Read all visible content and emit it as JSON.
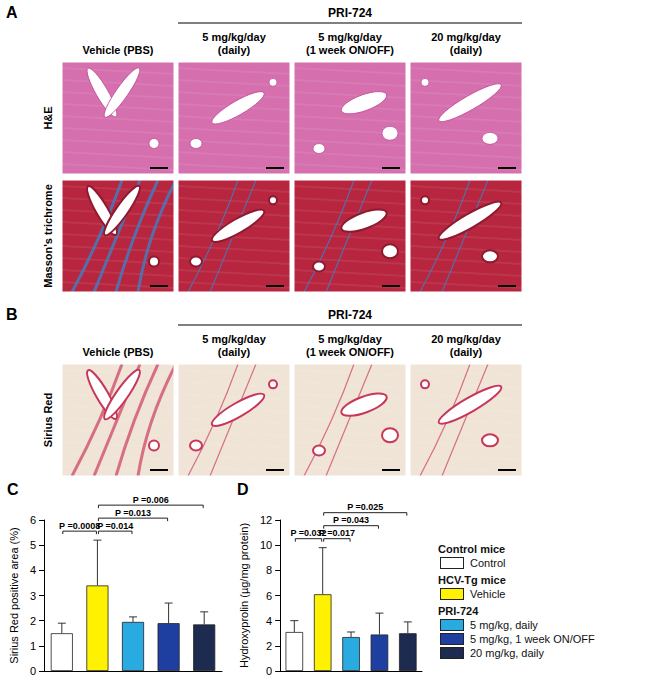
{
  "image_panels": [
    {
      "label": "A",
      "group_label": "PRI-724",
      "columns": [
        [
          "Vehicle (PBS)"
        ],
        [
          "5 mg/kg/day",
          "(daily)"
        ],
        [
          "5 mg/kg/day",
          "(1 week ON/OFF)"
        ],
        [
          "20 mg/kg/day",
          "(daily)"
        ]
      ],
      "rows": [
        "H&E",
        "Masson's trichrome"
      ]
    },
    {
      "label": "B",
      "group_label": "PRI-724",
      "columns": [
        [
          "Vehicle (PBS)"
        ],
        [
          "5 mg/kg/day",
          "(daily)"
        ],
        [
          "5 mg/kg/day",
          "(1 week ON/OFF)"
        ],
        [
          "20 mg/kg/day",
          "(daily)"
        ]
      ],
      "rows": [
        "Sirius Red"
      ]
    }
  ],
  "chart_data": [
    {
      "type": "bar",
      "title": "C",
      "ylabel": "Sirius Red positive area (%)",
      "categories": [
        null,
        null,
        null,
        null,
        null
      ],
      "values": [
        1.5,
        3.4,
        1.95,
        1.9,
        1.85
      ],
      "errors": [
        0.4,
        1.8,
        0.2,
        0.8,
        0.5
      ],
      "colors": [
        "#ffffff",
        "#fff200",
        "#29abe2",
        "#1f3fa0",
        "#1c2b4f"
      ],
      "ylim": [
        0,
        6
      ],
      "yticks": [
        0,
        1,
        2,
        3,
        4,
        5,
        6
      ],
      "annotations": [
        {
          "between": [
            0,
            1
          ],
          "text": "P =0.0008"
        },
        {
          "between": [
            1,
            2
          ],
          "text": "P =0.014"
        },
        {
          "between": [
            1,
            3
          ],
          "text": "P =0.013"
        },
        {
          "between": [
            1,
            4
          ],
          "text": "P =0.006"
        }
      ]
    },
    {
      "type": "bar",
      "title": "D",
      "ylabel": "Hydroxyprolin (µg/mg protein)",
      "categories": [
        null,
        null,
        null,
        null,
        null
      ],
      "values": [
        3.1,
        6.1,
        2.7,
        2.9,
        3.0
      ],
      "errors": [
        0.9,
        3.7,
        0.4,
        1.7,
        0.9
      ],
      "colors": [
        "#ffffff",
        "#fff200",
        "#29abe2",
        "#1f3fa0",
        "#1c2b4f"
      ],
      "ylim": [
        0,
        12
      ],
      "yticks": [
        0,
        2,
        4,
        6,
        8,
        10,
        12
      ],
      "annotations": [
        {
          "between": [
            0,
            1
          ],
          "text": "P =0.032"
        },
        {
          "between": [
            1,
            2
          ],
          "text": "P =0.017"
        },
        {
          "between": [
            1,
            3
          ],
          "text": "P =0.043"
        },
        {
          "between": [
            1,
            4
          ],
          "text": "P =0.025"
        }
      ]
    }
  ],
  "key": {
    "groups": [
      {
        "title": "Control mice",
        "entries": [
          "Control"
        ]
      },
      {
        "title": "HCV-Tg mice",
        "entries": [
          "Vehicle"
        ]
      },
      {
        "title": "PRI-724",
        "entries": [
          "5 mg/kg, daily",
          "5 mg/kg, 1 week ON/OFF",
          "20 mg/kg, daily"
        ]
      }
    ]
  }
}
